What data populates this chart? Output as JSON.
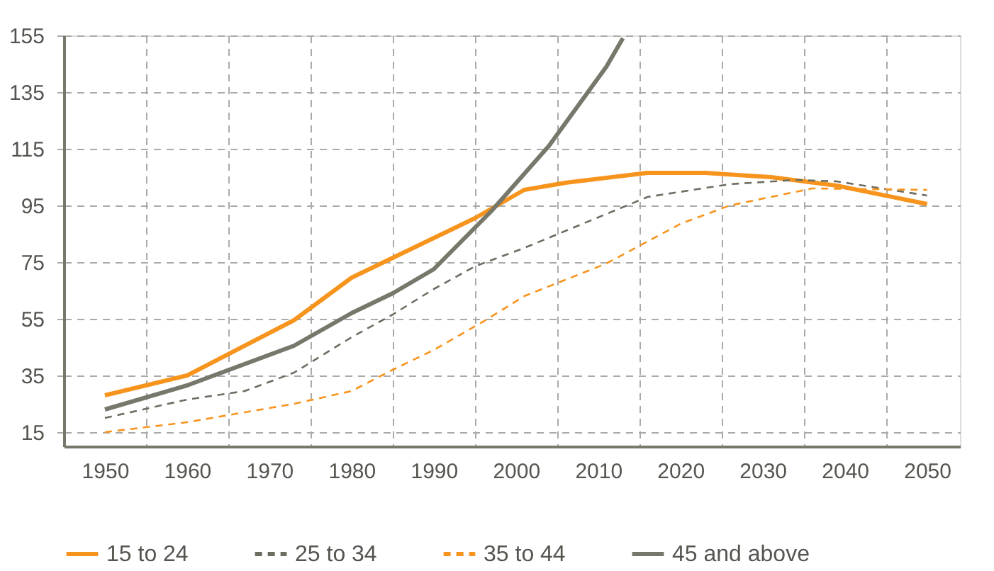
{
  "chart_data": {
    "type": "line",
    "xlim": [
      1945,
      2054
    ],
    "ylim": [
      10,
      155
    ],
    "xticks": [
      1950,
      {
        "value": 1955,
        "label": null
      },
      1960,
      {
        "value": 1965,
        "label": null
      },
      1970,
      {
        "value": 1975,
        "label": null
      },
      1980,
      {
        "value": 1985,
        "label": null
      },
      1990,
      {
        "value": 1995,
        "label": null
      },
      2000,
      {
        "value": 2005,
        "label": null
      },
      2010,
      {
        "value": 2015,
        "label": null
      },
      2020,
      {
        "value": 2025,
        "label": null
      },
      2030,
      {
        "value": 2035,
        "label": null
      },
      2040,
      {
        "value": 2045,
        "label": null
      },
      2050
    ],
    "yticks": [
      15,
      35,
      55,
      75,
      95,
      115,
      135,
      155
    ],
    "grid": true,
    "legend": "bottom",
    "marker": "none",
    "series": [
      {
        "name": "15 to 24",
        "color": "#f7941d",
        "line_style": "solid",
        "x": [
          1950,
          1960,
          1973,
          1980,
          1995,
          2001,
          2006,
          2016,
          2023,
          2031,
          2039,
          2050
        ],
        "values": [
          28,
          35,
          54.5,
          69.5,
          90.5,
          100.5,
          103,
          106.5,
          106.5,
          105,
          102,
          95.5
        ]
      },
      {
        "name": "25 to 34",
        "color": "#6d6d62",
        "line_style": "dashed",
        "x": [
          1950,
          1960,
          1967,
          1973,
          1980,
          1985,
          1990,
          1995,
          2001,
          2006,
          2016,
          2026,
          2034,
          2039,
          2050
        ],
        "values": [
          20,
          26.5,
          29.5,
          36,
          48.5,
          56.5,
          65.5,
          73.5,
          80,
          86,
          98,
          102.5,
          104,
          103.5,
          98.5
        ]
      },
      {
        "name": "35 to 44",
        "color": "#f7941d",
        "line_style": "dashed",
        "x": [
          1950,
          1960,
          1973,
          1980,
          1985,
          1990,
          1996,
          2001,
          2011,
          2020,
          2026,
          2036,
          2050
        ],
        "values": [
          15,
          18.5,
          25,
          29.5,
          37,
          44,
          54,
          63,
          74.5,
          88.5,
          95,
          101,
          100.5
        ]
      },
      {
        "name": "45 and above",
        "color": "#77776b",
        "line_style": "solid",
        "x": [
          1950,
          1960,
          1973,
          1980,
          1985,
          1990,
          1997,
          2004,
          2011,
          2013
        ],
        "values": [
          23,
          31.5,
          45.5,
          57,
          64,
          72.5,
          93,
          116,
          144,
          154
        ]
      }
    ]
  }
}
